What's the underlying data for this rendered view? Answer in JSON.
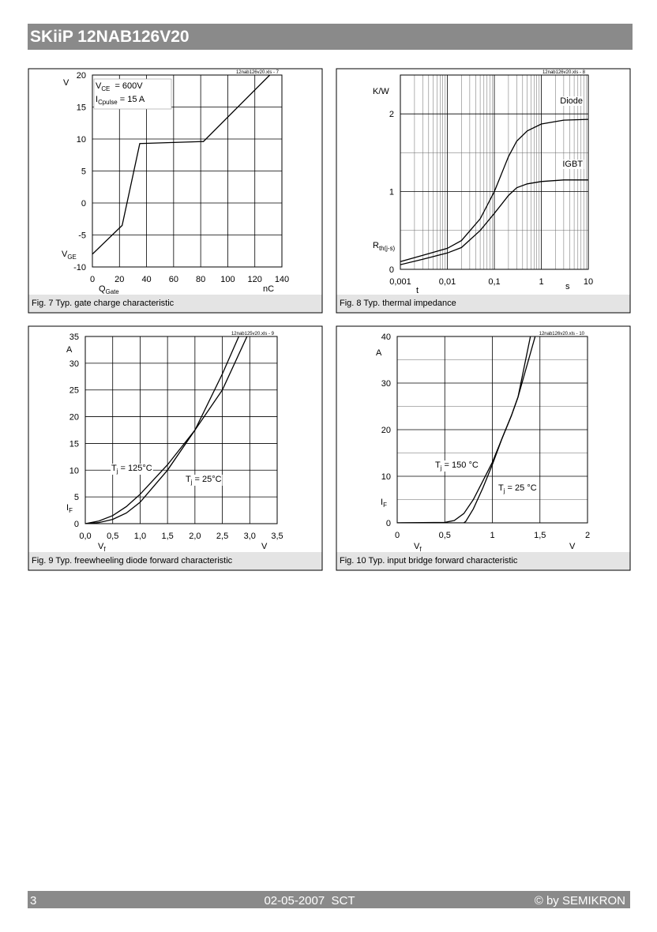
{
  "header": {
    "title": "SKiiP 12NAB126V20"
  },
  "footer": {
    "page": "3",
    "date": "02-05-2007  SCT",
    "copyright": "© by SEMIKRON"
  },
  "chart_data": [
    {
      "type": "line",
      "title": "Fig. 7 Typ. gate charge characteristic",
      "note": "12nab126v20.xls - 7",
      "xlim": [
        0,
        140
      ],
      "ylim": [
        -10,
        20
      ],
      "xticks": [
        0,
        20,
        40,
        60,
        80,
        100,
        120,
        140
      ],
      "yticks": [
        -10,
        -5,
        0,
        5,
        10,
        15,
        20
      ],
      "y_unit": [
        "V"
      ],
      "y_label": [
        "V",
        "GE"
      ],
      "x_label": [
        "Q",
        "Gate"
      ],
      "x_unit": [
        "nC"
      ],
      "legend_text": [
        [
          "V",
          "CE",
          "  = 600V"
        ],
        [
          "I",
          "Cpulse",
          " = 15 A"
        ]
      ],
      "series": [
        {
          "x": [
            0,
            22,
            35,
            82,
            131
          ],
          "y": [
            -8,
            -3.5,
            9.3,
            9.6,
            20
          ]
        }
      ]
    },
    {
      "type": "line",
      "title": "Fig. 8 Typ. thermal impedance",
      "note": "12nab126v20.xls - 8",
      "xscale": "log",
      "xlim": [
        0.001,
        10
      ],
      "ylim": [
        0,
        2.5
      ],
      "xticks": [
        {
          "value": 0.001,
          "label": "0,001"
        },
        {
          "value": 0.01,
          "label": "0,01"
        },
        {
          "value": 0.1,
          "label": "0,1"
        },
        1,
        10
      ],
      "yticks": [
        0,
        1,
        2
      ],
      "ygrid_minor": [
        0.5,
        1.5
      ],
      "y_unit": [
        "K/W"
      ],
      "y_label": [
        "R",
        "th(j-s)"
      ],
      "x_label": [
        "t"
      ],
      "x_unit": [
        "s"
      ],
      "series": [
        {
          "name": [
            "Diode"
          ],
          "x": [
            0.001,
            0.003,
            0.01,
            0.02,
            0.05,
            0.1,
            0.2,
            0.3,
            0.5,
            1,
            3,
            10
          ],
          "y": [
            0.1,
            0.18,
            0.27,
            0.37,
            0.65,
            1.0,
            1.45,
            1.65,
            1.78,
            1.87,
            1.92,
            1.93
          ]
        },
        {
          "name": [
            "IGBT"
          ],
          "x": [
            0.001,
            0.003,
            0.01,
            0.02,
            0.05,
            0.1,
            0.2,
            0.3,
            0.5,
            1,
            3,
            10
          ],
          "y": [
            0.06,
            0.13,
            0.21,
            0.28,
            0.5,
            0.72,
            0.95,
            1.05,
            1.1,
            1.13,
            1.15,
            1.15
          ]
        }
      ]
    },
    {
      "type": "line",
      "title": "Fig. 9 Typ. freewheeling diode forward characteristic",
      "note": "12nab125v20.xls - 9",
      "xlim": [
        0,
        3.5
      ],
      "ylim": [
        0,
        35
      ],
      "xticks": [
        {
          "value": 0,
          "label": "0,0"
        },
        {
          "value": 0.5,
          "label": "0,5"
        },
        {
          "value": 1,
          "label": "1,0"
        },
        {
          "value": 1.5,
          "label": "1,5"
        },
        {
          "value": 2,
          "label": "2,0"
        },
        {
          "value": 2.5,
          "label": "2,5"
        },
        {
          "value": 3,
          "label": "3,0"
        },
        {
          "value": 3.5,
          "label": "3,5"
        }
      ],
      "yticks": [
        0,
        5,
        10,
        15,
        20,
        25,
        30,
        35
      ],
      "y_unit": [
        "A"
      ],
      "y_label": [
        "I",
        "F"
      ],
      "x_label": [
        "V",
        "f"
      ],
      "x_unit": [
        "V"
      ],
      "series": [
        {
          "name": [
            "T",
            "j",
            " = 125°C"
          ],
          "x": [
            0,
            0.25,
            0.5,
            0.75,
            1,
            1.5,
            2,
            2.5,
            2.95
          ],
          "y": [
            0,
            0.5,
            1.5,
            3.2,
            5.5,
            11,
            17.5,
            25,
            35
          ]
        },
        {
          "name": [
            "T",
            "j",
            " = 25°C"
          ],
          "x": [
            0,
            0.25,
            0.5,
            0.75,
            1,
            1.5,
            2,
            2.5,
            2.8
          ],
          "y": [
            0,
            0.2,
            0.8,
            2,
            4,
            10,
            17.5,
            28,
            35
          ]
        }
      ]
    },
    {
      "type": "line",
      "title": "Fig. 10 Typ. input bridge forward characteristic",
      "note": "12nab126v20.xls - 10",
      "xlim": [
        0,
        2
      ],
      "ylim": [
        0,
        40
      ],
      "xticks": [
        0,
        {
          "value": 0.5,
          "label": "0,5"
        },
        1,
        {
          "value": 1.5,
          "label": "1,5"
        },
        2
      ],
      "yticks": [
        0,
        10,
        20,
        30,
        40
      ],
      "ygrid_minor": [
        5,
        15,
        25,
        35
      ],
      "y_unit": [
        "A"
      ],
      "y_label": [
        "I",
        "F"
      ],
      "x_label": [
        "V",
        "f"
      ],
      "x_unit": [
        "V"
      ],
      "series": [
        {
          "name": [
            "T",
            "j",
            " = 150 °C"
          ],
          "x": [
            0,
            0.5,
            0.6,
            0.7,
            0.8,
            0.9,
            1,
            1.1,
            1.2,
            1.27,
            1.45
          ],
          "y": [
            0,
            0.1,
            0.5,
            2,
            5,
            9,
            13,
            18,
            23,
            27,
            40
          ]
        },
        {
          "name": [
            "T",
            "j",
            " = 25 °C"
          ],
          "x": [
            0,
            0.7,
            0.72,
            0.8,
            0.9,
            1,
            1.1,
            1.2,
            1.27,
            1.4
          ],
          "y": [
            0,
            0,
            0.3,
            3,
            7.5,
            12.5,
            18,
            23,
            27,
            40
          ]
        }
      ]
    }
  ]
}
